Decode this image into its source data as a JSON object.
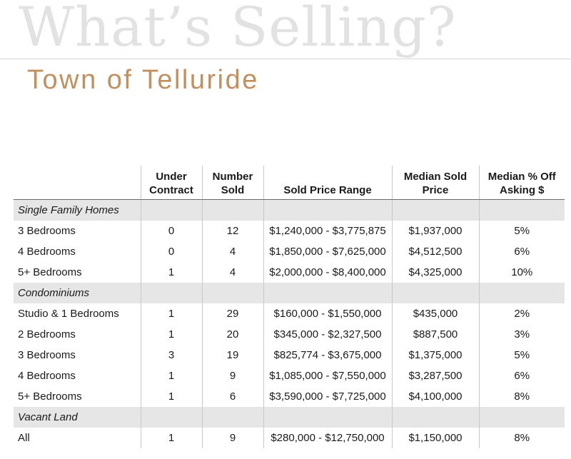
{
  "header": {
    "title": "What’s Selling?",
    "subtitle": "Town of Telluride"
  },
  "table": {
    "columns": [
      "",
      "Under Contract",
      "Number Sold",
      "Sold Price Range",
      "Median Sold Price",
      "Median % Off Asking $"
    ],
    "sections": [
      {
        "name": "Single Family Homes",
        "rows": [
          [
            "3 Bedrooms",
            "0",
            "12",
            "$1,240,000 - $3,775,875",
            "$1,937,000",
            "5%"
          ],
          [
            "4 Bedrooms",
            "0",
            "4",
            "$1,850,000 - $7,625,000",
            "$4,512,500",
            "6%"
          ],
          [
            "5+ Bedrooms",
            "1",
            "4",
            "$2,000,000 - $8,400,000",
            "$4,325,000",
            "10%"
          ]
        ]
      },
      {
        "name": "Condominiums",
        "rows": [
          [
            "Studio & 1 Bedrooms",
            "1",
            "29",
            "$160,000 - $1,550,000",
            "$435,000",
            "2%"
          ],
          [
            "2 Bedrooms",
            "1",
            "20",
            "$345,000 - $2,327,500",
            "$887,500",
            "3%"
          ],
          [
            "3 Bedrooms",
            "3",
            "19",
            "$825,774 - $3,675,000",
            "$1,375,000",
            "5%"
          ],
          [
            "4 Bedrooms",
            "1",
            "9",
            "$1,085,000 - $7,550,000",
            "$3,287,500",
            "6%"
          ],
          [
            "5+ Bedrooms",
            "1",
            "6",
            "$3,590,000 - $7,725,000",
            "$4,100,000",
            "8%"
          ]
        ]
      },
      {
        "name": "Vacant Land",
        "rows": [
          [
            "All",
            "1",
            "9",
            "$280,000 - $12,750,000",
            "$1,150,000",
            "8%"
          ]
        ]
      }
    ]
  }
}
